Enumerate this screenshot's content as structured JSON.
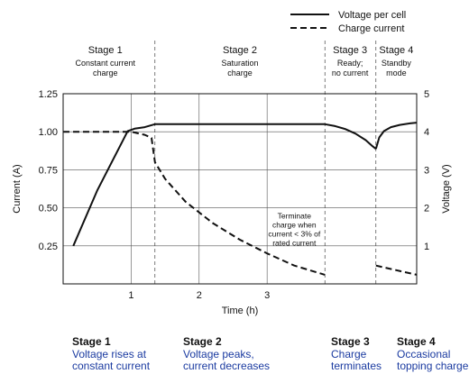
{
  "chart_data": {
    "type": "line",
    "xlabel": "Time (h)",
    "ylabel_left": "Current (A)",
    "ylabel_right": "Voltage (V)",
    "xlim": [
      0,
      5.2
    ],
    "ylim_left": [
      0,
      1.25
    ],
    "ylim_right": [
      0,
      5
    ],
    "x_ticks": [
      {
        "value": 1,
        "label": "1"
      },
      {
        "value": 2,
        "label": "2"
      },
      {
        "value": 3,
        "label": "3"
      }
    ],
    "y_ticks_left": [
      {
        "value": 0.25,
        "label": "0.25"
      },
      {
        "value": 0.5,
        "label": "0.50"
      },
      {
        "value": 0.75,
        "label": "0.75"
      },
      {
        "value": 1.0,
        "label": "1.00"
      },
      {
        "value": 1.25,
        "label": "1.25"
      }
    ],
    "y_ticks_right": [
      {
        "value": 1,
        "label": "1"
      },
      {
        "value": 2,
        "label": "2"
      },
      {
        "value": 3,
        "label": "3"
      },
      {
        "value": 4,
        "label": "4"
      },
      {
        "value": 5,
        "label": "5"
      }
    ],
    "grid": true,
    "legend": {
      "placement": "top-right",
      "entries": [
        {
          "label": "Voltage per cell",
          "style": "solid"
        },
        {
          "label": "Charge current",
          "style": "dashed"
        }
      ]
    },
    "stage_boundaries": [
      1.35,
      3.85,
      4.6
    ],
    "stages": [
      {
        "title": "Stage 1",
        "sub": [
          "Constant current",
          "charge"
        ],
        "x": 0.62
      },
      {
        "title": "Stage 2",
        "sub": [
          "Saturation",
          "charge"
        ],
        "x": 2.6
      },
      {
        "title": "Stage 3",
        "sub": [
          "Ready;",
          "no current"
        ],
        "x": 4.22
      },
      {
        "title": "Stage 4",
        "sub": [
          "Standby",
          "mode"
        ],
        "x": 4.9
      }
    ],
    "annotation": {
      "lines": [
        "Terminate",
        "charge when",
        "current < 3% of",
        "rated current"
      ],
      "x": 3.4,
      "y": 0.43
    },
    "series": [
      {
        "name": "Voltage per cell",
        "axis": "right",
        "style": "solid",
        "segments": [
          {
            "x": [
              0.15,
              0.5,
              0.95,
              1.05,
              1.2,
              1.35,
              1.6,
              2.0,
              2.5,
              3.0,
              3.5,
              3.85
            ],
            "y": [
              1.0,
              2.45,
              4.02,
              4.08,
              4.12,
              4.2,
              4.2,
              4.2,
              4.2,
              4.2,
              4.2,
              4.2
            ]
          },
          {
            "x": [
              3.85,
              4.0,
              4.15,
              4.3,
              4.45,
              4.55,
              4.6
            ],
            "y": [
              4.2,
              4.15,
              4.07,
              3.95,
              3.78,
              3.62,
              3.55
            ]
          },
          {
            "x": [
              4.6,
              4.65,
              4.72,
              4.82,
              4.95,
              5.1,
              5.2
            ],
            "y": [
              3.55,
              3.85,
              4.02,
              4.12,
              4.18,
              4.22,
              4.24
            ]
          }
        ]
      },
      {
        "name": "Charge current",
        "axis": "left",
        "style": "dashed",
        "segments": [
          {
            "x": [
              0.0,
              0.4,
              0.8,
              1.0,
              1.2,
              1.3,
              1.35,
              1.5,
              1.8,
              2.2,
              2.6,
              3.0,
              3.4,
              3.85
            ],
            "y": [
              1.0,
              1.0,
              1.0,
              1.0,
              0.98,
              0.96,
              0.8,
              0.69,
              0.54,
              0.4,
              0.29,
              0.2,
              0.12,
              0.06
            ]
          },
          {
            "x": [
              4.6,
              4.8,
              5.0,
              5.2
            ],
            "y": [
              0.12,
              0.1,
              0.08,
              0.06
            ]
          }
        ]
      }
    ]
  },
  "captions": [
    {
      "title": "Stage 1",
      "lines": [
        "Voltage rises at",
        "constant current"
      ]
    },
    {
      "title": "Stage 2",
      "lines": [
        "Voltage peaks,",
        "current decreases"
      ]
    },
    {
      "title": "Stage 3",
      "lines": [
        "Charge",
        "terminates"
      ]
    },
    {
      "title": "Stage 4",
      "lines": [
        "Occasional",
        "topping charge"
      ]
    }
  ],
  "colors": {
    "line": "#111111",
    "grid": "#555555",
    "caption_text": "#1a3aa0"
  }
}
